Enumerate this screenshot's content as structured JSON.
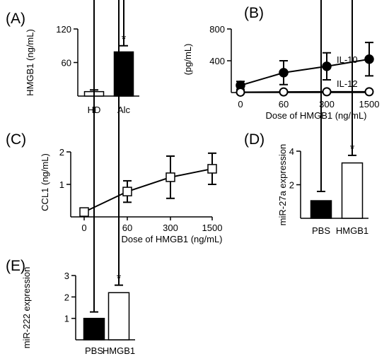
{
  "chart_data": [
    {
      "panel": "(A)",
      "type": "bar",
      "ylabel": "HMGB1 (ng/mL)",
      "yticks": [
        60,
        120
      ],
      "ylim": [
        0,
        120
      ],
      "categories": [
        "HD",
        "Alc"
      ],
      "values": [
        8,
        79
      ],
      "errors": [
        3,
        11
      ],
      "bar_colors": [
        "#ffffff",
        "#000000"
      ],
      "significance": [
        "",
        "*"
      ]
    },
    {
      "panel": "(B)",
      "type": "line",
      "ylabel": "(pg/mL)",
      "xlabel": "Dose of HMGB1 (ng/mL)",
      "categories": [
        "0",
        "60",
        "300",
        "1500"
      ],
      "yticks": [
        400,
        800
      ],
      "ylim": [
        0,
        800
      ],
      "series": [
        {
          "name": "IL-10",
          "values": [
            90,
            250,
            330,
            420
          ],
          "errors": [
            50,
            150,
            170,
            210
          ],
          "marker": "filled-circle"
        },
        {
          "name": "IL-12",
          "values": [
            5,
            8,
            10,
            10
          ],
          "errors": [
            15,
            15,
            15,
            15
          ],
          "marker": "open-circle"
        }
      ]
    },
    {
      "panel": "(C)",
      "type": "line",
      "ylabel": "CCL1 (ng/mL)",
      "xlabel": "Dose of HMGB1 (ng/mL)",
      "categories": [
        "0",
        "60",
        "300",
        "1500"
      ],
      "yticks": [
        1,
        2
      ],
      "ylim": [
        0,
        2
      ],
      "series": [
        {
          "values": [
            0.15,
            0.78,
            1.22,
            1.48
          ],
          "errors": [
            0.05,
            0.33,
            0.65,
            0.48
          ],
          "marker": "open-square"
        }
      ]
    },
    {
      "panel": "(D)",
      "type": "bar",
      "ylabel": "miR-27a expression",
      "categories": [
        "PBS",
        "HMGB1"
      ],
      "values": [
        1.05,
        3.3
      ],
      "errors": [
        0.55,
        0.45
      ],
      "yticks": [
        2,
        4
      ],
      "ylim": [
        0,
        4
      ],
      "bar_colors": [
        "#000000",
        "#ffffff"
      ],
      "significance": [
        "",
        "*"
      ]
    },
    {
      "panel": "(E)",
      "type": "bar",
      "ylabel": "miR-222 expression",
      "categories": [
        "PBS",
        "HMGB1"
      ],
      "values": [
        1.0,
        2.2
      ],
      "errors": [
        0.3,
        0.35
      ],
      "yticks": [
        1,
        2,
        3
      ],
      "ylim": [
        0,
        3
      ],
      "bar_colors": [
        "#000000",
        "#ffffff"
      ],
      "significance": [
        "",
        "*"
      ]
    }
  ]
}
